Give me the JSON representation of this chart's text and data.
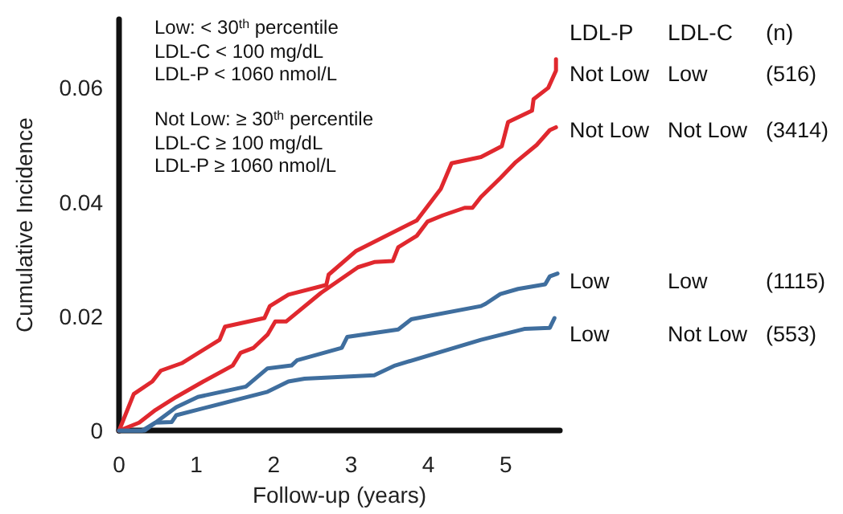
{
  "chart_data": {
    "type": "line",
    "xlabel": "Follow-up (years)",
    "ylabel": "Cumulative Incidence",
    "xlim": [
      0,
      5.7
    ],
    "xticks": [
      0,
      1,
      2,
      3,
      4,
      5
    ],
    "ylim": [
      0,
      0.072
    ],
    "yticks": [
      0,
      0.02,
      0.04,
      0.06
    ],
    "grid": false,
    "marker": "none",
    "line_style": "solid",
    "series": [
      {
        "color": "#e0282e",
        "x": [
          0,
          0.19,
          0.43,
          0.54,
          0.81,
          1.3,
          1.37,
          1.88,
          1.95,
          2.19,
          2.68,
          2.71,
          3.06,
          3.85,
          4.16,
          4.3,
          4.68,
          4.95,
          5.03,
          5.34,
          5.36,
          5.55,
          5.65,
          5.65
        ],
        "values": [
          0,
          0.0064,
          0.0086,
          0.0105,
          0.0118,
          0.0159,
          0.0182,
          0.0197,
          0.0218,
          0.0238,
          0.0255,
          0.0273,
          0.0314,
          0.0368,
          0.0423,
          0.0468,
          0.0479,
          0.0498,
          0.054,
          0.056,
          0.058,
          0.06,
          0.063,
          0.065
        ]
      },
      {
        "color": "#e0282e",
        "x": [
          0,
          0.26,
          0.47,
          0.74,
          1.09,
          1.47,
          1.57,
          1.74,
          1.92,
          2.02,
          2.16,
          2.61,
          3.09,
          3.3,
          3.54,
          3.61,
          3.85,
          3.99,
          4.19,
          4.47,
          4.57,
          4.68,
          4.93,
          5.13,
          5.4,
          5.57,
          5.65
        ],
        "values": [
          0,
          0.0014,
          0.0036,
          0.0059,
          0.0086,
          0.0114,
          0.0136,
          0.0145,
          0.0168,
          0.0191,
          0.0191,
          0.0241,
          0.0286,
          0.0295,
          0.0297,
          0.0321,
          0.0341,
          0.0366,
          0.0377,
          0.039,
          0.039,
          0.0409,
          0.0442,
          0.047,
          0.05,
          0.0526,
          0.0531
        ]
      },
      {
        "color": "#3f6e9e",
        "x": [
          0,
          0.3,
          0.47,
          0.74,
          1.02,
          1.64,
          1.92,
          2.23,
          2.3,
          2.88,
          2.95,
          3.61,
          3.78,
          4.68,
          4.74,
          4.93,
          5.16,
          5.51,
          5.57,
          5.67
        ],
        "values": [
          0,
          0,
          0.0014,
          0.0041,
          0.0059,
          0.0077,
          0.0109,
          0.0114,
          0.0123,
          0.0145,
          0.0164,
          0.0177,
          0.0195,
          0.0218,
          0.0222,
          0.0239,
          0.0248,
          0.0256,
          0.027,
          0.0275
        ]
      },
      {
        "color": "#3f6e9e",
        "x": [
          0,
          0.33,
          0.47,
          0.68,
          0.74,
          1.92,
          2.19,
          2.4,
          3.3,
          3.57,
          4.68,
          5.24,
          5.57,
          5.63
        ],
        "values": [
          0,
          0,
          0.0014,
          0.0015,
          0.0027,
          0.0068,
          0.0086,
          0.0091,
          0.0097,
          0.0114,
          0.0159,
          0.0178,
          0.018,
          0.0197
        ]
      }
    ],
    "annotations": [
      "Low: < 30$^{th}$ percentile",
      "LDL-C < 100 mg/dL",
      "LDL-P < 1060 nmol/L",
      "Not Low: ≥ 30$^{th}$ percentile",
      "LDL-C ≥ 100 mg/dL",
      "LDL-P ≥ 1060 nmol/L",
      "LDL-P",
      "LDL-C",
      "(n)",
      "Not Low",
      "Low",
      "(516)",
      "Not Low",
      "Not Low",
      "(3414)",
      "Low",
      "Low",
      "(1115)",
      "Low",
      "Not Low",
      "(553)"
    ]
  }
}
